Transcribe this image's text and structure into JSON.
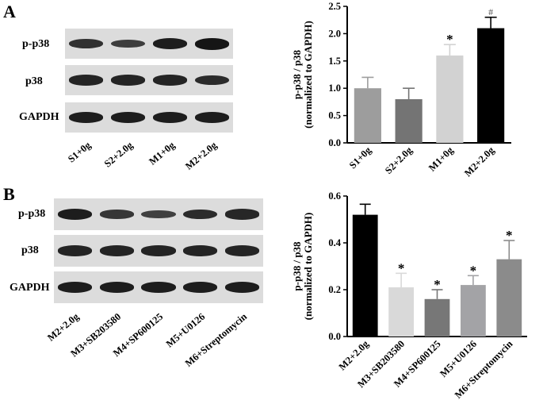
{
  "panel_a": {
    "letter": "A",
    "blot_labels": [
      "p-p38",
      "p38",
      "GAPDH"
    ],
    "lanes": [
      "S1+0g",
      "S2+2.0g",
      "M1+0g",
      "M2+2.0g"
    ],
    "band_intensity": {
      "p-p38": [
        0.7,
        0.55,
        0.9,
        1.0
      ],
      "p38": [
        0.85,
        0.85,
        0.85,
        0.75
      ],
      "GAPDH": [
        0.9,
        0.9,
        0.9,
        0.9
      ]
    }
  },
  "panel_b": {
    "letter": "B",
    "blot_labels": [
      "p-p38",
      "p38",
      "GAPDH"
    ],
    "lanes": [
      "M2+2.0g",
      "M3+SB203580",
      "M4+SP600125",
      "M5+U0126",
      "M6+Streptomycin"
    ],
    "band_intensity": {
      "p-p38": [
        0.9,
        0.65,
        0.5,
        0.75,
        0.8
      ],
      "p38": [
        0.85,
        0.85,
        0.85,
        0.85,
        0.85
      ],
      "GAPDH": [
        0.9,
        0.9,
        0.9,
        0.9,
        0.9
      ]
    }
  },
  "chart_data": [
    {
      "type": "bar",
      "ylabel_line1": "p-p38 / p38",
      "ylabel_line2": "(normalized to GAPDH)",
      "categories": [
        "S1+0g",
        "S2+2.0g",
        "M1+0g",
        "M2+2.0g"
      ],
      "values": [
        1.0,
        0.8,
        1.6,
        2.1
      ],
      "errors": [
        0.2,
        0.2,
        0.2,
        0.2
      ],
      "annotations": [
        "",
        "",
        "*",
        "#"
      ],
      "colors": [
        "#9d9d9d",
        "#747474",
        "#d2d2d2",
        "#000000"
      ],
      "ylim": [
        0,
        2.5
      ],
      "yticks": [
        "0.0",
        "0.5",
        "1.0",
        "1.5",
        "2.0",
        "2.5"
      ],
      "grid": false
    },
    {
      "type": "bar",
      "ylabel_line1": "p-p38 / p38",
      "ylabel_line2": "(normalized to GAPDH)",
      "categories": [
        "M2+2.0g",
        "M3+SB203580",
        "M4+SP600125",
        "M5+U0126",
        "M6+Streptomycin"
      ],
      "values": [
        0.52,
        0.21,
        0.16,
        0.22,
        0.33
      ],
      "errors": [
        0.045,
        0.06,
        0.04,
        0.04,
        0.08
      ],
      "annotations": [
        "",
        "*",
        "*",
        "*",
        "*"
      ],
      "colors": [
        "#000000",
        "#d9d9d9",
        "#777777",
        "#a3a3a6",
        "#8b8b8b"
      ],
      "ylim": [
        0,
        0.6
      ],
      "yticks": [
        "0.0",
        "0.2",
        "0.4",
        "0.6"
      ],
      "grid": false
    }
  ]
}
